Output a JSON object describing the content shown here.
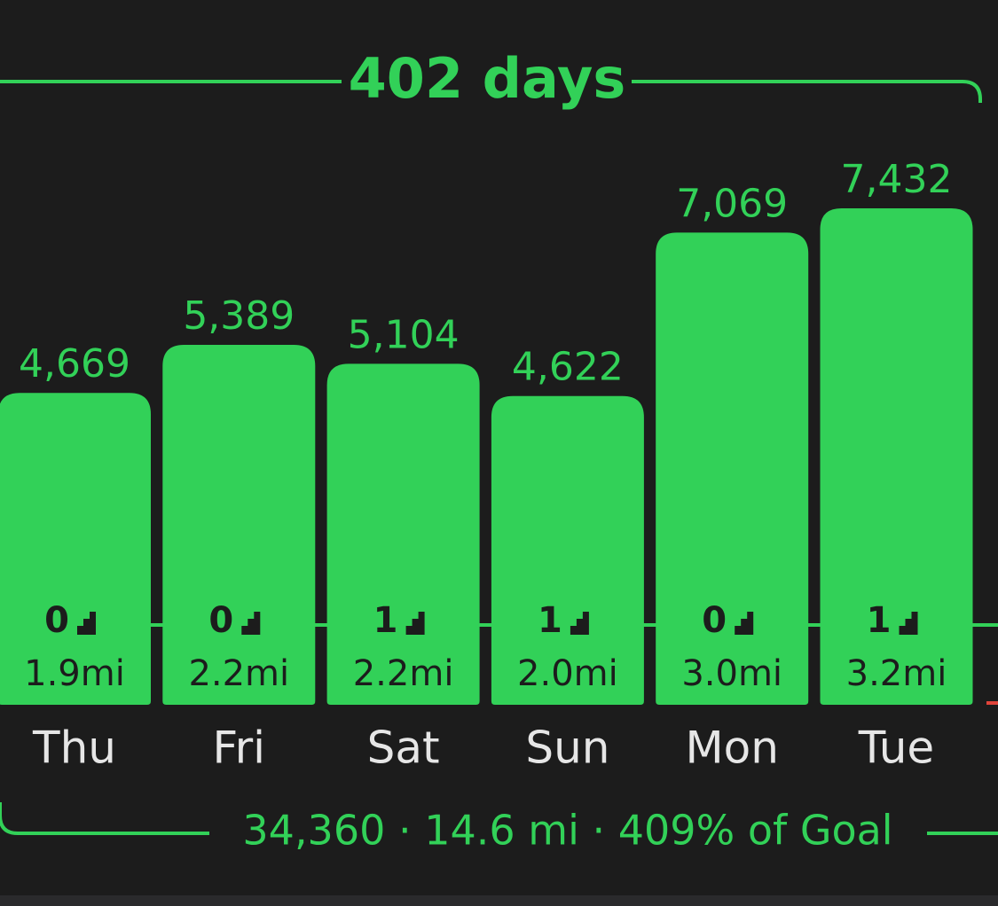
{
  "chart_data": {
    "type": "bar",
    "title": "402 days",
    "summary": "34,360 · 14.6 mi · 409% of Goal",
    "categories": [
      "Thu",
      "Fri",
      "Sat",
      "Sun",
      "Mon",
      "Tue"
    ],
    "values": [
      4669,
      5389,
      5104,
      4622,
      7069,
      7432
    ],
    "value_labels": [
      "4,669",
      "5,389",
      "5,104",
      "4,622",
      "7,069",
      "7,432"
    ],
    "floors": [
      0,
      0,
      1,
      1,
      0,
      1
    ],
    "distance_labels": [
      "1.9mi",
      "2.2mi",
      "2.2mi",
      "2.0mi",
      "3.0mi",
      "3.2mi"
    ],
    "color": "#32d158"
  }
}
